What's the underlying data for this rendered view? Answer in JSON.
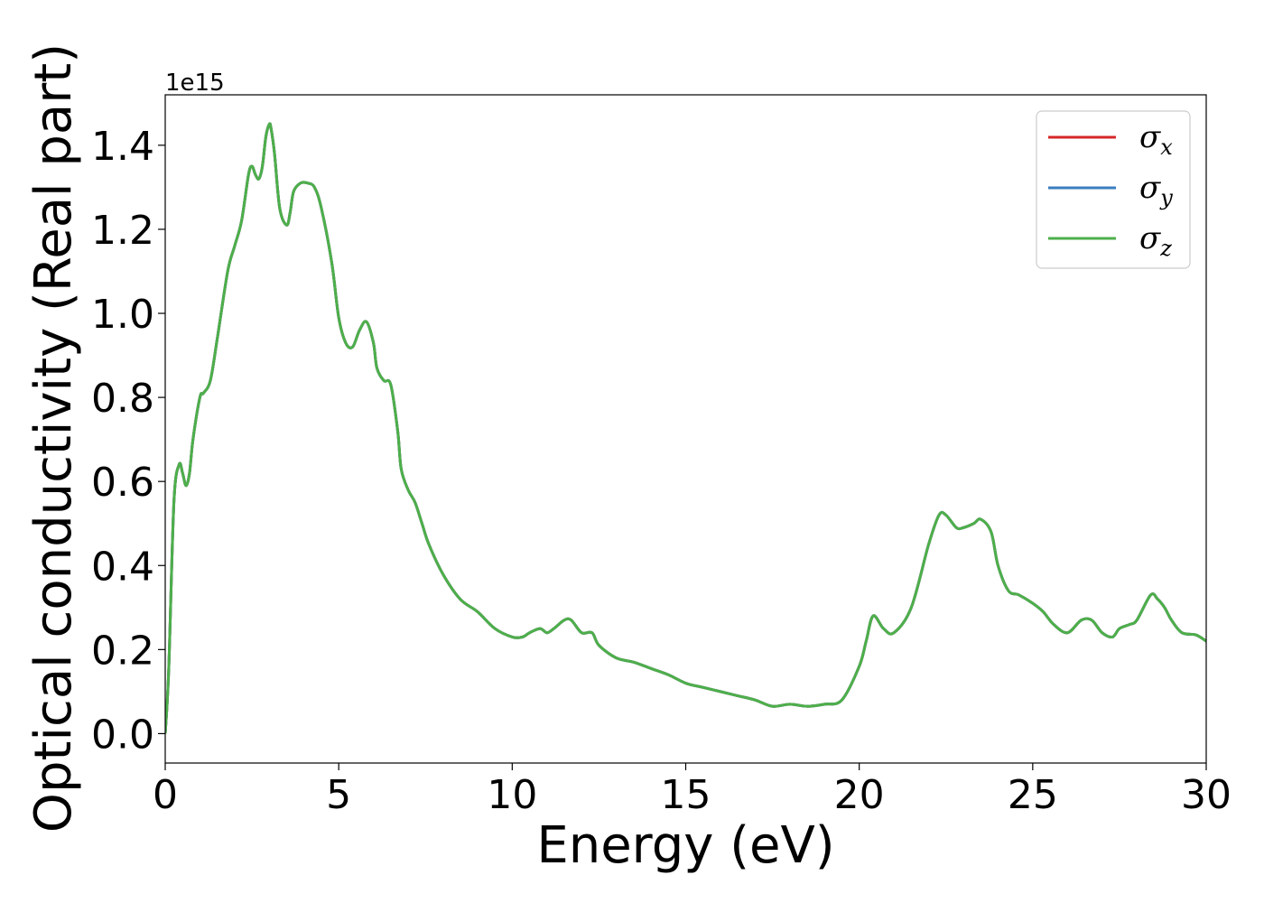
{
  "chart_data": {
    "type": "line",
    "xlabel": "Energy (eV)",
    "ylabel": "Optical conductivity (Real part)",
    "y_offset_label": "1e15",
    "xlim": [
      0,
      30
    ],
    "ylim": [
      -0.07,
      1.52
    ],
    "x_ticks": [
      0,
      5,
      10,
      15,
      20,
      25,
      30
    ],
    "x_tick_labels": [
      "0",
      "5",
      "10",
      "15",
      "20",
      "25",
      "30"
    ],
    "y_ticks": [
      0.0,
      0.2,
      0.4,
      0.6,
      0.8,
      1.0,
      1.2,
      1.4
    ],
    "y_tick_labels": [
      "0.0",
      "0.2",
      "0.4",
      "0.6",
      "0.8",
      "1.0",
      "1.2",
      "1.4"
    ],
    "grid": false,
    "legend_position": "top-right",
    "colors": {
      "sigma_x": "#d62728",
      "sigma_y": "#3a7ebf",
      "sigma_z": "#4daf4a"
    },
    "series": [
      {
        "name": "σx",
        "symbol": "σ",
        "subscript": "x",
        "color": "#d62728",
        "values_ref": "shared"
      },
      {
        "name": "σy",
        "symbol": "σ",
        "subscript": "y",
        "color": "#3a7ebf",
        "values_ref": "shared"
      },
      {
        "name": "σz",
        "symbol": "σ",
        "subscript": "z",
        "color": "#4daf4a",
        "values_ref": "shared"
      }
    ],
    "x": [
      0,
      0.1,
      0.25,
      0.4,
      0.5,
      0.6,
      0.7,
      0.8,
      1.0,
      1.1,
      1.3,
      1.5,
      1.8,
      2.0,
      2.2,
      2.4,
      2.5,
      2.6,
      2.7,
      2.8,
      2.9,
      3.0,
      3.05,
      3.15,
      3.3,
      3.5,
      3.6,
      3.7,
      3.9,
      4.1,
      4.3,
      4.5,
      4.8,
      5.0,
      5.2,
      5.4,
      5.6,
      5.8,
      6.0,
      6.1,
      6.3,
      6.5,
      6.7,
      6.8,
      7.0,
      7.2,
      7.4,
      7.6,
      8.0,
      8.5,
      9.0,
      9.5,
      10.0,
      10.3,
      10.5,
      10.8,
      11.0,
      11.2,
      11.5,
      11.7,
      12.0,
      12.3,
      12.5,
      13.0,
      13.5,
      14.0,
      14.5,
      15.0,
      15.5,
      16.0,
      16.5,
      17.0,
      17.5,
      18.0,
      18.5,
      19.0,
      19.5,
      20.0,
      20.2,
      20.4,
      20.7,
      21.0,
      21.5,
      22.0,
      22.3,
      22.5,
      22.8,
      23.0,
      23.3,
      23.5,
      23.8,
      24.0,
      24.3,
      24.6,
      25.0,
      25.3,
      25.6,
      26.0,
      26.4,
      26.7,
      27.0,
      27.3,
      27.5,
      27.8,
      28.0,
      28.4,
      28.6,
      28.8,
      29.0,
      29.3,
      29.7,
      30.0
    ],
    "values": [
      0.0,
      0.15,
      0.55,
      0.64,
      0.62,
      0.59,
      0.62,
      0.7,
      0.8,
      0.81,
      0.84,
      0.94,
      1.1,
      1.16,
      1.22,
      1.33,
      1.35,
      1.33,
      1.32,
      1.35,
      1.42,
      1.45,
      1.44,
      1.38,
      1.25,
      1.21,
      1.24,
      1.29,
      1.31,
      1.31,
      1.3,
      1.25,
      1.12,
      0.99,
      0.93,
      0.92,
      0.96,
      0.98,
      0.93,
      0.87,
      0.84,
      0.83,
      0.72,
      0.63,
      0.58,
      0.55,
      0.5,
      0.45,
      0.38,
      0.32,
      0.29,
      0.25,
      0.23,
      0.23,
      0.24,
      0.25,
      0.24,
      0.25,
      0.27,
      0.27,
      0.24,
      0.24,
      0.21,
      0.18,
      0.17,
      0.155,
      0.14,
      0.12,
      0.11,
      0.1,
      0.09,
      0.08,
      0.065,
      0.07,
      0.065,
      0.07,
      0.08,
      0.16,
      0.22,
      0.28,
      0.25,
      0.24,
      0.3,
      0.45,
      0.52,
      0.52,
      0.49,
      0.49,
      0.5,
      0.51,
      0.48,
      0.4,
      0.34,
      0.33,
      0.31,
      0.29,
      0.26,
      0.24,
      0.27,
      0.27,
      0.24,
      0.23,
      0.25,
      0.26,
      0.27,
      0.33,
      0.32,
      0.3,
      0.27,
      0.24,
      0.235,
      0.22
    ]
  }
}
